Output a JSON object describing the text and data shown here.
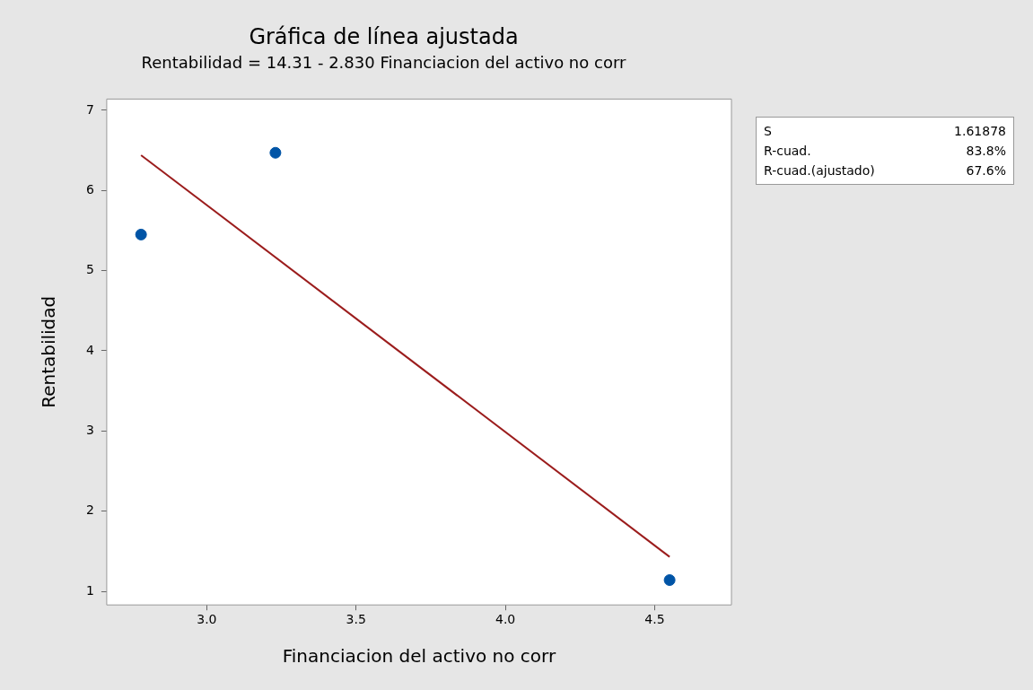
{
  "chart_data": {
    "type": "scatter",
    "title": "Gráfica de línea ajustada",
    "subtitle": "Rentabilidad = 14.31 - 2.830 Financiacion del activo no corr",
    "xlabel": "Financiacion del activo no corr",
    "ylabel": "Rentabilidad",
    "series": [
      {
        "type": "scatter",
        "color": "#0054a6",
        "x": [
          2.78,
          3.23,
          4.55
        ],
        "values": [
          5.45,
          6.47,
          1.14
        ],
        "marker": "circle"
      },
      {
        "type": "line",
        "color": "#9b1c1c",
        "x": [
          2.78,
          4.55
        ],
        "values": [
          6.44,
          1.43
        ],
        "marker": "none",
        "line_style": "solid"
      }
    ],
    "xlim": [
      2.665,
      4.757
    ],
    "xticks": [
      {
        "value": 3,
        "label": "3.0"
      },
      {
        "value": 3.5,
        "label": "3.5"
      },
      {
        "value": 4,
        "label": "4.0"
      },
      {
        "value": 4.5,
        "label": "4.5"
      }
    ],
    "ylim": [
      0.83,
      7.14
    ],
    "yticks": [
      1,
      2,
      3,
      4,
      5,
      6,
      7
    ],
    "grid": false,
    "legend": false,
    "annotations": [
      "S",
      "1.61878",
      "R-cuad.",
      "83.8%",
      "R-cuad.(ajustado)",
      "67.6%"
    ]
  }
}
